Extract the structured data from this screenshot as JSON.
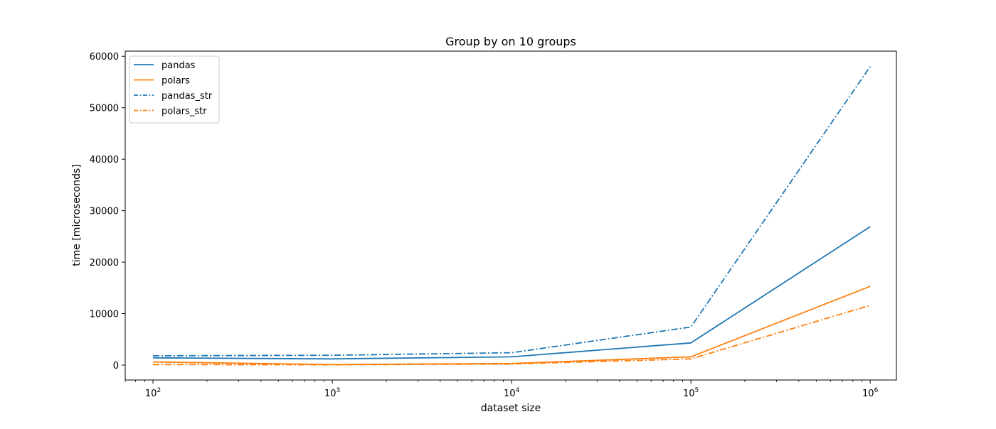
{
  "chart_data": {
    "type": "line",
    "title": "Group by on 10 groups",
    "xlabel": "dataset size",
    "ylabel": "time [microseconds]",
    "xscale": "log",
    "x": [
      100,
      1000,
      10000,
      100000,
      1000000
    ],
    "x_tick_labels": [
      {
        "base": "10",
        "exp": "2"
      },
      {
        "base": "10",
        "exp": "3"
      },
      {
        "base": "10",
        "exp": "4"
      },
      {
        "base": "10",
        "exp": "5"
      },
      {
        "base": "10",
        "exp": "6"
      }
    ],
    "y_ticks": [
      0,
      10000,
      20000,
      30000,
      40000,
      50000,
      60000
    ],
    "y_tick_labels": [
      "0",
      "10000",
      "20000",
      "30000",
      "40000",
      "50000",
      "60000"
    ],
    "ylim": [
      -2900,
      61000
    ],
    "xlim": [
      70,
      1400000
    ],
    "grid": false,
    "legend_position": "top-left",
    "series": [
      {
        "name": "pandas",
        "values": [
          1400,
          1200,
          1600,
          4300,
          26900
        ],
        "color": "#1f77b4",
        "style": "solid"
      },
      {
        "name": "polars",
        "values": [
          600,
          100,
          300,
          1600,
          15300
        ],
        "color": "#ff7f0e",
        "style": "solid"
      },
      {
        "name": "pandas_str",
        "values": [
          1800,
          1900,
          2400,
          7400,
          58000
        ],
        "color": "#1f77b4",
        "style": "dashdot"
      },
      {
        "name": "polars_str",
        "values": [
          100,
          50,
          200,
          1200,
          11600
        ],
        "color": "#ff7f0e",
        "style": "dashdot"
      }
    ]
  }
}
